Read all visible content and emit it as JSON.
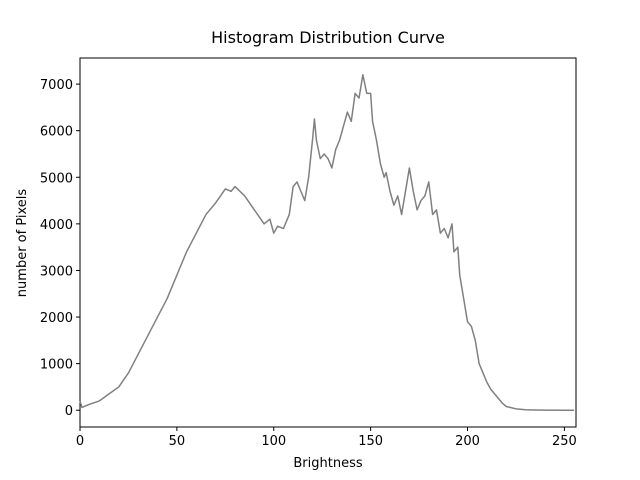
{
  "chart_data": {
    "type": "line",
    "title": "Histogram Distribution Curve",
    "x_label": "Brightness",
    "y_label": "number of Pixels",
    "x": [
      0,
      1,
      5,
      10,
      15,
      20,
      25,
      30,
      35,
      40,
      45,
      50,
      55,
      60,
      65,
      70,
      75,
      78,
      80,
      85,
      90,
      95,
      98,
      100,
      102,
      105,
      108,
      110,
      112,
      114,
      116,
      118,
      120,
      121,
      122,
      124,
      126,
      128,
      130,
      132,
      134,
      136,
      138,
      140,
      142,
      144,
      146,
      148,
      150,
      151,
      153,
      155,
      157,
      158,
      160,
      162,
      164,
      166,
      168,
      170,
      172,
      174,
      176,
      178,
      180,
      182,
      184,
      186,
      188,
      190,
      192,
      193,
      195,
      196,
      198,
      200,
      202,
      204,
      206,
      208,
      210,
      212,
      215,
      218,
      220,
      225,
      230,
      235,
      240,
      250,
      255
    ],
    "values": [
      200,
      60,
      130,
      200,
      350,
      500,
      800,
      1200,
      1600,
      2000,
      2400,
      2900,
      3400,
      3800,
      4200,
      4450,
      4750,
      4700,
      4800,
      4600,
      4300,
      4000,
      4100,
      3800,
      3950,
      3900,
      4200,
      4800,
      4900,
      4700,
      4500,
      5000,
      5800,
      6250,
      5800,
      5400,
      5500,
      5400,
      5200,
      5600,
      5800,
      6100,
      6400,
      6200,
      6800,
      6700,
      7200,
      6800,
      6800,
      6200,
      5800,
      5300,
      5000,
      5100,
      4700,
      4400,
      4600,
      4200,
      4700,
      5200,
      4700,
      4300,
      4500,
      4600,
      4900,
      4200,
      4300,
      3800,
      3900,
      3700,
      4000,
      3400,
      3500,
      2900,
      2400,
      1900,
      1800,
      1500,
      1000,
      800,
      600,
      450,
      300,
      150,
      80,
      30,
      10,
      5,
      3,
      0,
      0
    ],
    "color": "#808080",
    "xlim": [
      0,
      256
    ],
    "ylim": [
      -360,
      7560
    ],
    "xticks": [
      0,
      50,
      100,
      150,
      200,
      250
    ],
    "yticks": [
      0,
      1000,
      2000,
      3000,
      4000,
      5000,
      6000,
      7000
    ]
  }
}
